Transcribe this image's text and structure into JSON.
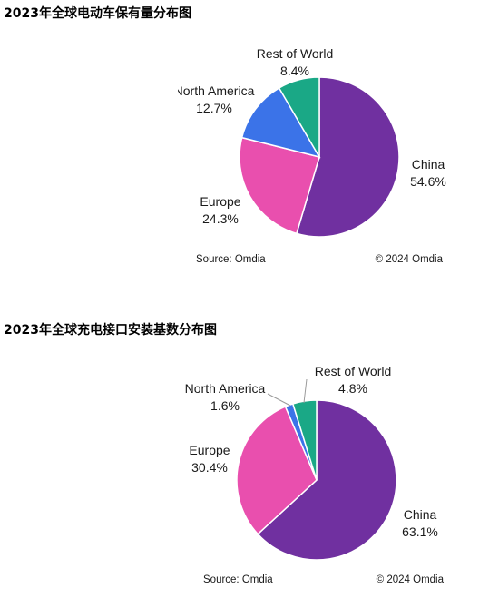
{
  "headings": [
    "2023年全球电动车保有量分布图",
    "2023年全球充电接口安装基数分布图"
  ],
  "chart_data": [
    {
      "type": "pie",
      "title": "2023年全球电动车保有量分布图",
      "slices": [
        {
          "label": "China",
          "value": 54.6,
          "display": "54.6%",
          "color": "#7030A0"
        },
        {
          "label": "Europe",
          "value": 24.3,
          "display": "24.3%",
          "color": "#E94FAE"
        },
        {
          "label": "North America",
          "value": 12.7,
          "display": "12.7%",
          "color": "#3B73E8"
        },
        {
          "label": "Rest of World",
          "value": 8.4,
          "display": "8.4%",
          "color": "#1AA886"
        }
      ],
      "source": "Source: Omdia",
      "copyright": "© 2024 Omdia"
    },
    {
      "type": "pie",
      "title": "2023年全球充电接口安装基数分布图",
      "slices": [
        {
          "label": "China",
          "value": 63.1,
          "display": "63.1%",
          "color": "#7030A0"
        },
        {
          "label": "Europe",
          "value": 30.4,
          "display": "30.4%",
          "color": "#E94FAE"
        },
        {
          "label": "North America",
          "value": 1.6,
          "display": "1.6%",
          "color": "#3B73E8"
        },
        {
          "label": "Rest of World",
          "value": 4.8,
          "display": "4.8%",
          "color": "#1AA886"
        }
      ],
      "source": "Source: Omdia",
      "copyright": "© 2024 Omdia"
    }
  ]
}
